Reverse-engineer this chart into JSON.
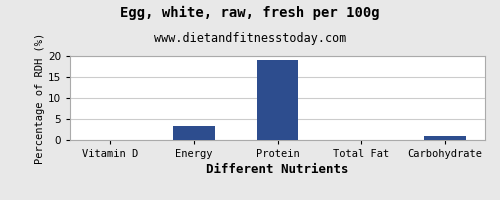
{
  "title": "Egg, white, raw, fresh per 100g",
  "subtitle": "www.dietandfitnesstoday.com",
  "xlabel": "Different Nutrients",
  "ylabel": "Percentage of RDH (%)",
  "categories": [
    "Vitamin D",
    "Energy",
    "Protein",
    "Total Fat",
    "Carbohydrate"
  ],
  "values": [
    0,
    3.3,
    19.0,
    0,
    1.0
  ],
  "bar_color": "#2d4d8e",
  "ylim": [
    0,
    20
  ],
  "yticks": [
    0,
    5,
    10,
    15,
    20
  ],
  "background_color": "#e8e8e8",
  "plot_background_color": "#ffffff",
  "title_fontsize": 10,
  "subtitle_fontsize": 8.5,
  "xlabel_fontsize": 9,
  "ylabel_fontsize": 7.5,
  "tick_fontsize": 7.5,
  "grid_color": "#cccccc"
}
